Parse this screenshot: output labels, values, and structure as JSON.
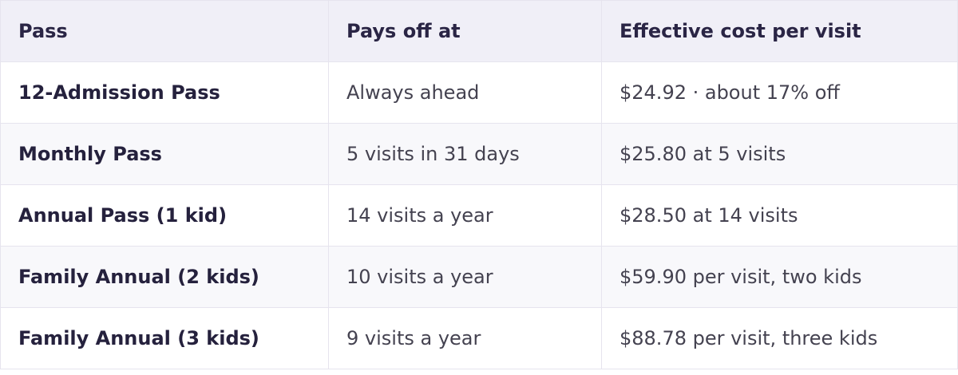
{
  "table": {
    "header": [
      "Pass",
      "Pays off at",
      "Effective cost per visit"
    ],
    "rows": [
      [
        "12-Admission Pass",
        "Always ahead",
        "$24.92 · about 17% off"
      ],
      [
        "Monthly Pass",
        "5 visits in 31 days",
        "$25.80 at 5 visits"
      ],
      [
        "Annual Pass (1 kid)",
        "14 visits a year",
        "$28.50 at 14 visits"
      ],
      [
        "Family Annual (2 kids)",
        "10 visits a year",
        "$59.90 per visit, two kids"
      ],
      [
        "Family Annual (3 kids)",
        "9 visits a year",
        "$88.78 per visit, three kids"
      ]
    ]
  }
}
